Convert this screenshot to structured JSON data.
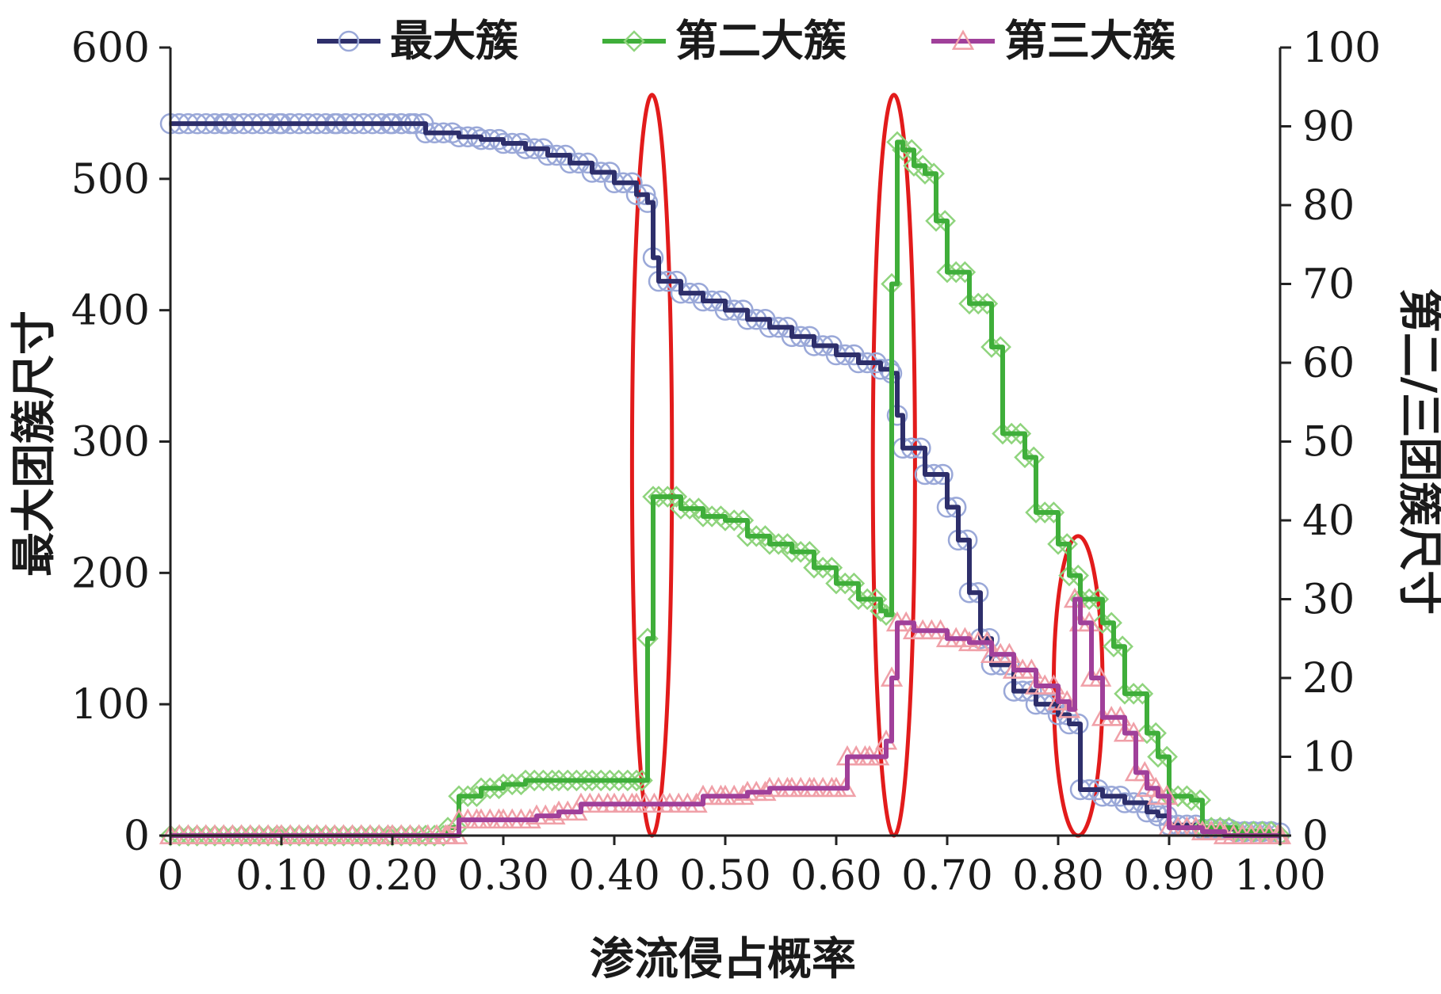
{
  "chart_data": {
    "type": "line",
    "xlabel": "渗流侵占概率",
    "ylabel_left": "最大团簇尺寸",
    "ylabel_right": "第二/三团簇尺寸",
    "xlim": [
      0,
      1
    ],
    "ylim_left": [
      0,
      600
    ],
    "ylim_right": [
      0,
      100
    ],
    "x_ticks": [
      "0",
      "0.10",
      "0.20",
      "0.30",
      "0.40",
      "0.50",
      "0.60",
      "0.70",
      "0.80",
      "0.90",
      "1.00"
    ],
    "y_left_ticks": [
      "0",
      "100",
      "200",
      "300",
      "400",
      "500",
      "600"
    ],
    "y_right_ticks": [
      "0",
      "10",
      "20",
      "30",
      "40",
      "50",
      "60",
      "70",
      "80",
      "90",
      "100"
    ],
    "legend_position": "top",
    "grid": false,
    "series": [
      {
        "name": "最大簇",
        "axis": "left",
        "line_color": "#2e2f6b",
        "marker_color": "#9aa8d8",
        "marker": "circle",
        "points": [
          [
            0,
            542
          ],
          [
            0.05,
            542
          ],
          [
            0.1,
            542
          ],
          [
            0.15,
            542
          ],
          [
            0.2,
            542
          ],
          [
            0.22,
            542
          ],
          [
            0.23,
            535
          ],
          [
            0.26,
            532
          ],
          [
            0.28,
            530
          ],
          [
            0.3,
            527
          ],
          [
            0.32,
            523
          ],
          [
            0.34,
            518
          ],
          [
            0.36,
            512
          ],
          [
            0.38,
            505
          ],
          [
            0.4,
            497
          ],
          [
            0.42,
            488
          ],
          [
            0.43,
            482
          ],
          [
            0.435,
            440
          ],
          [
            0.44,
            422
          ],
          [
            0.46,
            413
          ],
          [
            0.48,
            407
          ],
          [
            0.5,
            400
          ],
          [
            0.52,
            393
          ],
          [
            0.54,
            387
          ],
          [
            0.56,
            380
          ],
          [
            0.58,
            373
          ],
          [
            0.6,
            366
          ],
          [
            0.62,
            360
          ],
          [
            0.64,
            355
          ],
          [
            0.65,
            352
          ],
          [
            0.655,
            320
          ],
          [
            0.66,
            295
          ],
          [
            0.68,
            275
          ],
          [
            0.7,
            250
          ],
          [
            0.71,
            225
          ],
          [
            0.72,
            185
          ],
          [
            0.73,
            150
          ],
          [
            0.74,
            130
          ],
          [
            0.76,
            110
          ],
          [
            0.78,
            100
          ],
          [
            0.8,
            92
          ],
          [
            0.81,
            85
          ],
          [
            0.82,
            35
          ],
          [
            0.84,
            30
          ],
          [
            0.86,
            25
          ],
          [
            0.88,
            18
          ],
          [
            0.89,
            15
          ],
          [
            0.9,
            8
          ],
          [
            0.93,
            5
          ],
          [
            0.96,
            3
          ],
          [
            1.0,
            2
          ]
        ]
      },
      {
        "name": "第二大簇",
        "axis": "right",
        "line_color": "#3fae3a",
        "marker_color": "#8fd47d",
        "marker": "diamond",
        "points": [
          [
            0,
            0
          ],
          [
            0.1,
            0
          ],
          [
            0.2,
            0
          ],
          [
            0.23,
            0
          ],
          [
            0.25,
            1
          ],
          [
            0.26,
            5
          ],
          [
            0.28,
            6
          ],
          [
            0.3,
            6.5
          ],
          [
            0.32,
            7
          ],
          [
            0.35,
            7
          ],
          [
            0.38,
            7
          ],
          [
            0.42,
            7
          ],
          [
            0.425,
            7
          ],
          [
            0.43,
            25
          ],
          [
            0.435,
            43
          ],
          [
            0.44,
            43
          ],
          [
            0.46,
            41.5
          ],
          [
            0.48,
            40.5
          ],
          [
            0.5,
            40
          ],
          [
            0.52,
            38
          ],
          [
            0.54,
            37
          ],
          [
            0.56,
            36
          ],
          [
            0.58,
            34
          ],
          [
            0.6,
            32
          ],
          [
            0.62,
            30
          ],
          [
            0.64,
            28.5
          ],
          [
            0.645,
            28
          ],
          [
            0.65,
            70
          ],
          [
            0.655,
            88
          ],
          [
            0.66,
            87
          ],
          [
            0.67,
            85
          ],
          [
            0.68,
            84
          ],
          [
            0.69,
            78
          ],
          [
            0.7,
            71.5
          ],
          [
            0.72,
            67.5
          ],
          [
            0.74,
            62
          ],
          [
            0.75,
            51
          ],
          [
            0.77,
            48
          ],
          [
            0.78,
            41
          ],
          [
            0.8,
            37
          ],
          [
            0.81,
            33
          ],
          [
            0.82,
            30
          ],
          [
            0.84,
            27
          ],
          [
            0.85,
            24
          ],
          [
            0.86,
            18
          ],
          [
            0.88,
            13
          ],
          [
            0.89,
            10
          ],
          [
            0.9,
            5
          ],
          [
            0.92,
            4.5
          ],
          [
            0.93,
            1
          ],
          [
            0.96,
            0.5
          ],
          [
            1.0,
            0
          ]
        ]
      },
      {
        "name": "第三大簇",
        "axis": "right",
        "line_color": "#a0409a",
        "marker_color": "#f0a0a8",
        "marker": "triangle",
        "points": [
          [
            0,
            0
          ],
          [
            0.1,
            0
          ],
          [
            0.2,
            0
          ],
          [
            0.25,
            0
          ],
          [
            0.26,
            2
          ],
          [
            0.28,
            2
          ],
          [
            0.3,
            2
          ],
          [
            0.33,
            2.5
          ],
          [
            0.35,
            3
          ],
          [
            0.37,
            4
          ],
          [
            0.4,
            4
          ],
          [
            0.42,
            4
          ],
          [
            0.45,
            4
          ],
          [
            0.48,
            5
          ],
          [
            0.5,
            5
          ],
          [
            0.52,
            5.5
          ],
          [
            0.54,
            6
          ],
          [
            0.56,
            6
          ],
          [
            0.58,
            6
          ],
          [
            0.6,
            6
          ],
          [
            0.61,
            10
          ],
          [
            0.63,
            10
          ],
          [
            0.645,
            12
          ],
          [
            0.65,
            20
          ],
          [
            0.655,
            27
          ],
          [
            0.67,
            26
          ],
          [
            0.7,
            25
          ],
          [
            0.72,
            24.5
          ],
          [
            0.74,
            23
          ],
          [
            0.76,
            21
          ],
          [
            0.78,
            19
          ],
          [
            0.8,
            17
          ],
          [
            0.81,
            16
          ],
          [
            0.815,
            30
          ],
          [
            0.82,
            27
          ],
          [
            0.83,
            20
          ],
          [
            0.84,
            15
          ],
          [
            0.86,
            13
          ],
          [
            0.87,
            8
          ],
          [
            0.88,
            6
          ],
          [
            0.89,
            5
          ],
          [
            0.9,
            1
          ],
          [
            0.93,
            0.5
          ],
          [
            0.95,
            0
          ],
          [
            1.0,
            0
          ]
        ]
      }
    ],
    "annotations": [
      {
        "shape": "ellipse",
        "color": "#e21b1b",
        "x": 0.434,
        "y_right": 47,
        "rx_data": 0.018,
        "ry_right": 47
      },
      {
        "shape": "ellipse",
        "color": "#e21b1b",
        "x": 0.652,
        "y_right": 47,
        "rx_data": 0.019,
        "ry_right": 47
      },
      {
        "shape": "ellipse",
        "color": "#e21b1b",
        "x": 0.818,
        "y_right": 19,
        "rx_data": 0.022,
        "ry_right": 19
      }
    ]
  }
}
